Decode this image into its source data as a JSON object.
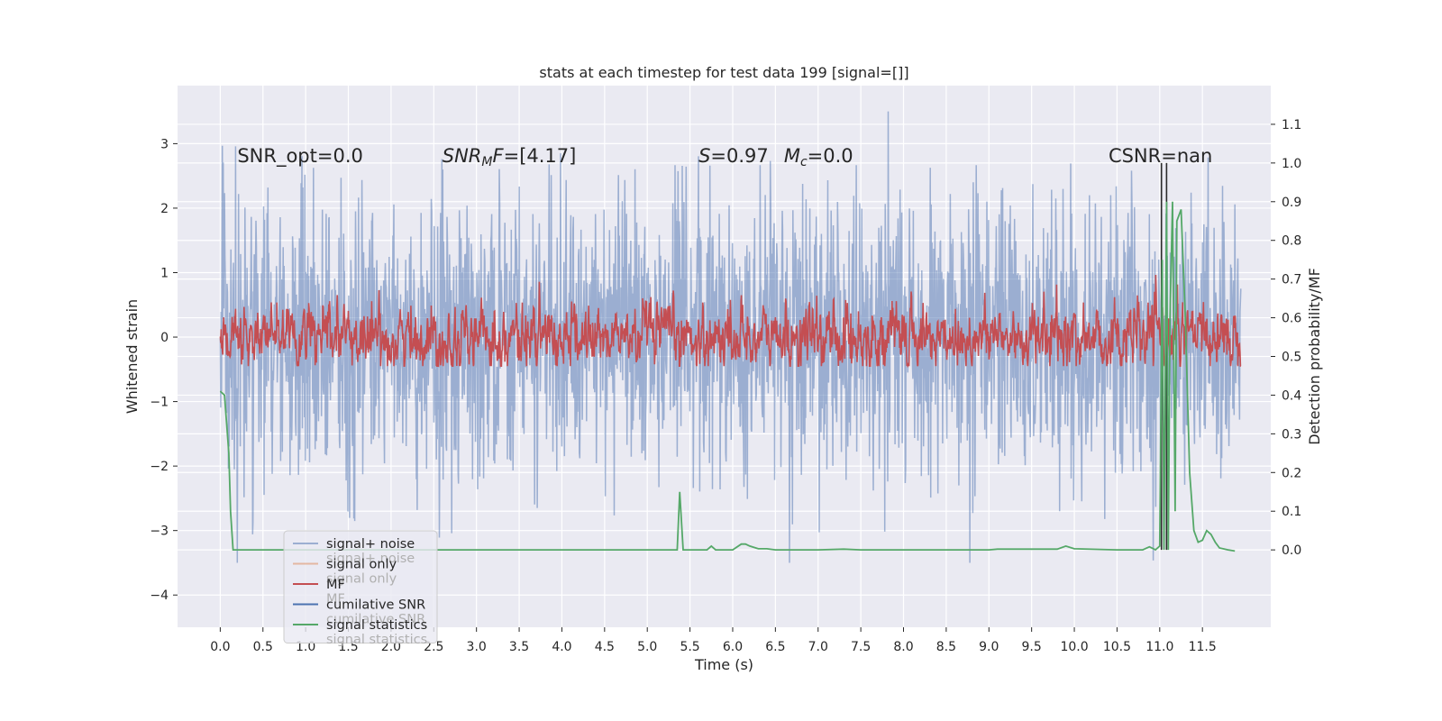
{
  "chart_data": {
    "type": "line",
    "title": "stats at each timestep for test data 199 [signal=[]]",
    "xlabel": "Time (s)",
    "ylabel_left": "Whitened strain",
    "ylabel_right": "Detection probability/MF",
    "xlim": [
      -0.5,
      12.3
    ],
    "ylim_left": [
      -4.5,
      3.9
    ],
    "ylim_right": [
      -0.2,
      1.2
    ],
    "x_ticks": [
      "0.0",
      "0.5",
      "1.0",
      "1.5",
      "2.0",
      "2.5",
      "3.0",
      "3.5",
      "4.0",
      "4.5",
      "5.0",
      "5.5",
      "6.0",
      "6.5",
      "7.0",
      "7.5",
      "8.0",
      "8.5",
      "9.0",
      "9.5",
      "10.0",
      "10.5",
      "11.0",
      "11.5"
    ],
    "y_ticks_left": [
      "3",
      "2",
      "1",
      "0",
      "−1",
      "−2",
      "−3",
      "−4"
    ],
    "y_ticks_right": [
      "1.1",
      "1.0",
      "0.9",
      "0.8",
      "0.7",
      "0.6",
      "0.5",
      "0.4",
      "0.3",
      "0.2",
      "0.1",
      "0.0"
    ],
    "grid": true,
    "legend_position": "bottom-left",
    "annotations": {
      "snr_opt": "SNR_opt=0.0",
      "snr_mf_base": "SNR",
      "snr_mf_sub": "M",
      "snr_mf_rest": "F=[4.17]",
      "s_label": "S",
      "s_value": "=0.97",
      "mc_label": "M",
      "mc_sub": "c",
      "mc_value": "=0.0",
      "csnr": "CSNR=nan"
    },
    "legend": [
      {
        "label": "signal+ noise",
        "color": "#4c72b0",
        "alpha": 0.5
      },
      {
        "label": "signal only",
        "color": "#dd8452",
        "alpha": 0.5
      },
      {
        "label": "MF",
        "color": "#c44e52",
        "alpha": 1
      },
      {
        "label": "cumilative SNR",
        "color": "#4c72b0",
        "alpha": 1
      },
      {
        "label": "signal statistics",
        "color": "#55a868",
        "alpha": 1
      }
    ],
    "legend_ghost_text": [
      "signal+ noise",
      "signal only",
      "MF",
      "cumilative SNR",
      "signal statistics"
    ],
    "series": [
      {
        "name": "signal+ noise",
        "axis": "left",
        "color": "#4c72b0",
        "x_range": [
          0.0,
          11.95
        ],
        "approx_range": [
          -3.5,
          3.5
        ]
      },
      {
        "name": "MF",
        "axis": "left",
        "color": "#c44e52",
        "x_range": [
          0.0,
          11.95
        ],
        "approx_range": [
          -0.45,
          0.97
        ]
      },
      {
        "name": "signal statistics",
        "axis": "right",
        "color": "#55a868",
        "x": [
          0.0,
          0.05,
          0.1,
          0.12,
          0.15,
          0.2,
          0.3,
          1.0,
          3.0,
          5.0,
          5.3,
          5.35,
          5.38,
          5.42,
          5.5,
          5.6,
          5.7,
          5.75,
          5.8,
          5.9,
          6.0,
          6.1,
          6.15,
          6.2,
          6.3,
          6.4,
          6.5,
          6.6,
          7.0,
          7.3,
          7.5,
          8.0,
          9.0,
          9.1,
          9.5,
          9.8,
          9.9,
          10.0,
          10.5,
          10.8,
          10.88,
          10.95,
          11.0,
          11.03,
          11.05,
          11.08,
          11.1,
          11.12,
          11.15,
          11.18,
          11.2,
          11.25,
          11.3,
          11.35,
          11.4,
          11.45,
          11.5,
          11.55,
          11.6,
          11.65,
          11.7,
          11.8,
          11.88
        ],
        "y": [
          0.41,
          0.4,
          0.25,
          0.1,
          0.0,
          0.0,
          0.0,
          0.0,
          0.0,
          0.0,
          0.0,
          0.0,
          0.15,
          0.0,
          0.0,
          0.0,
          0.0,
          0.01,
          0.0,
          0.0,
          0.0,
          0.015,
          0.015,
          0.01,
          0.003,
          0.003,
          0.0,
          0.0,
          0.0,
          0.002,
          0.0,
          0.0,
          0.0,
          0.002,
          0.002,
          0.002,
          0.01,
          0.003,
          0.0,
          0.0,
          0.008,
          0.0,
          0.01,
          0.75,
          0.0,
          0.9,
          0.0,
          0.6,
          0.9,
          0.1,
          0.85,
          0.88,
          0.6,
          0.2,
          0.05,
          0.02,
          0.025,
          0.05,
          0.04,
          0.02,
          0.005,
          0.0,
          -0.003
        ]
      },
      {
        "name": "cumilative SNR",
        "axis": "right",
        "color": "#4c72b0",
        "x": [],
        "y": []
      }
    ],
    "vertical_markers": [
      {
        "x": 11.02,
        "color": "#2b2b2b"
      },
      {
        "x": 11.08,
        "color": "#2b2b2b"
      }
    ]
  }
}
